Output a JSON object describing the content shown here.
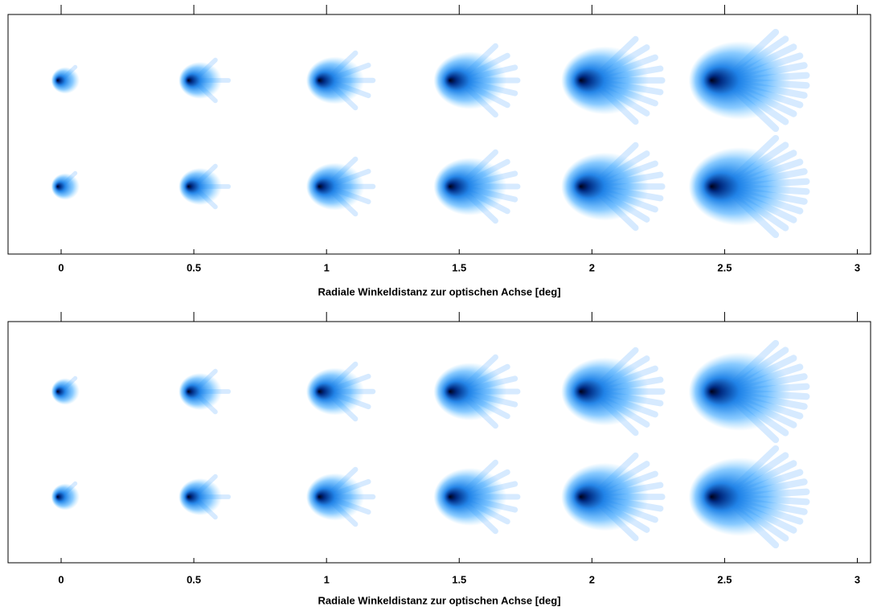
{
  "chart_data": [
    {
      "type": "image",
      "xlabel": "Radiale Winkeldistanz zur optischen Achse [deg]",
      "x": [
        0,
        0.5,
        1,
        1.5,
        2,
        2.5
      ],
      "xlim": [
        -0.2,
        3.05
      ],
      "xticks": [
        0,
        0.5,
        1,
        1.5,
        2,
        2.5,
        3
      ],
      "color": "#1a8cff"
    },
    {
      "type": "image",
      "xlabel": "Radiale Winkeldistanz zur optischen Achse [deg]",
      "x": [
        0,
        0.5,
        1,
        1.5,
        2,
        2.5
      ],
      "xlim": [
        -0.2,
        3.05
      ],
      "xticks": [
        0,
        0.5,
        1,
        1.5,
        2,
        2.5,
        3
      ],
      "color": "#1a8cff"
    }
  ]
}
